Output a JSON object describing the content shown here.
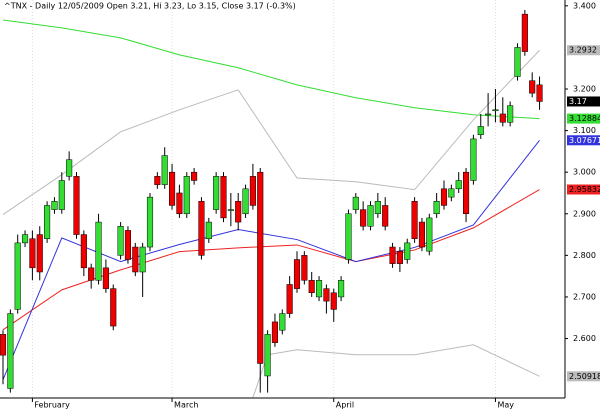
{
  "chart_data": {
    "type": "candlestick",
    "title": "^TNX - Daily 12/05/2009 Open 3.21, Hi 3.23, Lo 3.15, Close 3.17 (-0.3%)",
    "categories": [
      null,
      null,
      null,
      null,
      "February",
      null,
      null,
      null,
      null,
      null,
      null,
      null,
      null,
      null,
      null,
      null,
      null,
      null,
      null,
      null,
      null,
      null,
      null,
      "March",
      null,
      null,
      null,
      null,
      null,
      null,
      null,
      null,
      null,
      null,
      null,
      null,
      null,
      null,
      null,
      null,
      null,
      null,
      null,
      null,
      null,
      "April",
      null,
      null,
      null,
      null,
      null,
      null,
      null,
      null,
      null,
      null,
      null,
      null,
      null,
      null,
      null,
      null,
      null,
      null,
      null,
      null,
      null,
      "May",
      null,
      null,
      null,
      null,
      null,
      null
    ],
    "open": [
      2.61,
      2.48,
      2.67,
      2.83,
      2.84,
      2.85,
      2.84,
      2.91,
      2.91,
      2.99,
      2.99,
      2.85,
      2.77,
      2.74,
      2.77,
      2.72,
      2.8,
      2.86,
      2.82,
      2.76,
      2.82,
      2.99,
      2.97,
      3.0,
      2.95,
      2.9,
      3.0,
      2.93,
      2.84,
      2.91,
      2.99,
      2.91,
      2.93,
      2.9,
      2.99,
      3.0,
      2.51,
      2.64,
      2.62,
      2.73,
      2.79,
      2.8,
      2.74,
      2.7,
      2.72,
      2.71,
      2.7,
      2.79,
      2.91,
      2.91,
      2.87,
      2.9,
      2.92,
      2.82,
      2.81,
      2.79,
      2.93,
      2.88,
      2.81,
      2.9,
      2.96,
      2.94,
      2.96,
      3.0,
      2.98,
      3.09,
      3.14,
      3.15,
      3.14,
      3.12,
      3.23,
      3.38,
      3.22,
      3.21
    ],
    "high": [
      2.62,
      2.67,
      2.85,
      2.86,
      2.86,
      2.87,
      2.93,
      2.94,
      3.0,
      3.05,
      3.0,
      2.86,
      2.78,
      2.9,
      2.79,
      2.73,
      2.88,
      2.87,
      2.83,
      2.83,
      2.95,
      3.0,
      3.06,
      3.02,
      2.97,
      3.0,
      3.01,
      2.94,
      2.89,
      3.0,
      3.0,
      2.95,
      2.95,
      2.97,
      3.02,
      3.01,
      2.62,
      2.66,
      2.67,
      2.75,
      2.81,
      2.81,
      2.76,
      2.75,
      2.73,
      2.72,
      2.75,
      2.91,
      2.95,
      2.93,
      2.93,
      2.95,
      2.94,
      2.83,
      2.82,
      2.84,
      2.94,
      2.89,
      2.9,
      2.95,
      2.98,
      2.97,
      3.0,
      3.01,
      3.09,
      3.14,
      3.19,
      3.2,
      3.18,
      3.17,
      3.31,
      3.39,
      3.24,
      3.23
    ],
    "low": [
      2.49,
      2.47,
      2.66,
      2.82,
      2.74,
      2.74,
      2.83,
      2.9,
      2.9,
      2.98,
      2.84,
      2.75,
      2.72,
      2.73,
      2.71,
      2.62,
      2.79,
      2.78,
      2.75,
      2.7,
      2.81,
      2.96,
      2.96,
      2.91,
      2.89,
      2.89,
      2.97,
      2.79,
      2.83,
      2.9,
      2.88,
      2.87,
      2.86,
      2.89,
      2.91,
      2.47,
      2.47,
      2.58,
      2.61,
      2.65,
      2.71,
      2.73,
      2.7,
      2.69,
      2.66,
      2.64,
      2.69,
      2.78,
      2.9,
      2.86,
      2.86,
      2.89,
      2.86,
      2.77,
      2.76,
      2.78,
      2.83,
      2.81,
      2.8,
      2.89,
      2.91,
      2.93,
      2.95,
      2.88,
      2.97,
      3.08,
      3.11,
      3.12,
      3.11,
      3.11,
      3.22,
      3.28,
      3.18,
      3.15
    ],
    "close": [
      2.56,
      2.66,
      2.83,
      2.85,
      2.77,
      2.76,
      2.92,
      2.93,
      2.98,
      3.03,
      2.85,
      2.77,
      2.74,
      2.88,
      2.72,
      2.63,
      2.87,
      2.79,
      2.76,
      2.82,
      2.94,
      2.97,
      3.04,
      2.92,
      2.9,
      2.99,
      2.98,
      2.8,
      2.88,
      2.99,
      2.89,
      2.91,
      2.88,
      2.96,
      2.92,
      2.54,
      2.61,
      2.59,
      2.66,
      2.66,
      2.72,
      2.74,
      2.71,
      2.74,
      2.69,
      2.67,
      2.74,
      2.9,
      2.94,
      2.87,
      2.92,
      2.93,
      2.87,
      2.78,
      2.78,
      2.83,
      2.84,
      2.82,
      2.89,
      2.93,
      2.92,
      2.96,
      2.98,
      2.9,
      3.08,
      3.11,
      3.14,
      3.15,
      3.12,
      3.16,
      3.3,
      3.29,
      3.19,
      3.17
    ],
    "up_color": "#33dd33",
    "down_color": "#ee0000",
    "overlays": [
      {
        "color": "#33dd33",
        "x": [
          0,
          8,
          16,
          24,
          32,
          40,
          48,
          56,
          64,
          73
        ],
        "values": [
          3.366,
          3.347,
          3.323,
          3.282,
          3.251,
          3.21,
          3.179,
          3.155,
          3.138,
          3.12884
        ],
        "end_value": 3.12884
      },
      {
        "color": "#ee2222",
        "x": [
          0,
          8,
          16,
          24,
          32,
          40,
          48,
          56,
          64,
          73
        ],
        "values": [
          2.621,
          2.717,
          2.765,
          2.809,
          2.818,
          2.825,
          2.785,
          2.813,
          2.866,
          2.95832
        ],
        "end_value": 2.95832
      },
      {
        "color": "#3333dd",
        "x": [
          0,
          8,
          16,
          24,
          32,
          40,
          48,
          56,
          64,
          73
        ],
        "values": [
          2.501,
          2.842,
          2.785,
          2.826,
          2.862,
          2.838,
          2.785,
          2.819,
          2.873,
          3.07671
        ],
        "end_value": 3.07671
      },
      {
        "color": "#bbbbbb",
        "x": [
          0,
          8,
          16,
          24,
          32,
          40,
          48,
          56,
          64,
          73
        ],
        "values": [
          2.898,
          2.994,
          3.097,
          3.15,
          3.198,
          2.986,
          2.977,
          2.958,
          3.126,
          3.2932
        ],
        "end_value": 3.2932
      },
      {
        "color": "#bbbbbb",
        "x": [
          34,
          36,
          40,
          48,
          56,
          64,
          73
        ],
        "values": [
          2.458,
          2.561,
          2.573,
          2.561,
          2.561,
          2.585,
          2.50918
        ],
        "end_value": 2.50918
      }
    ],
    "ylim": [
      2.457,
      3.414
    ],
    "yticks": [
      {
        "value": 2.6,
        "label": "2.600"
      },
      {
        "value": 2.7,
        "label": "2.700"
      },
      {
        "value": 2.8,
        "label": "2.800"
      },
      {
        "value": 2.9,
        "label": "2.900"
      },
      {
        "value": 3.0,
        "label": "3.000"
      },
      {
        "value": 3.1,
        "label": "3.100"
      },
      {
        "value": 3.2,
        "label": "3.200"
      },
      {
        "value": 3.4,
        "label": "3.400"
      }
    ]
  }
}
